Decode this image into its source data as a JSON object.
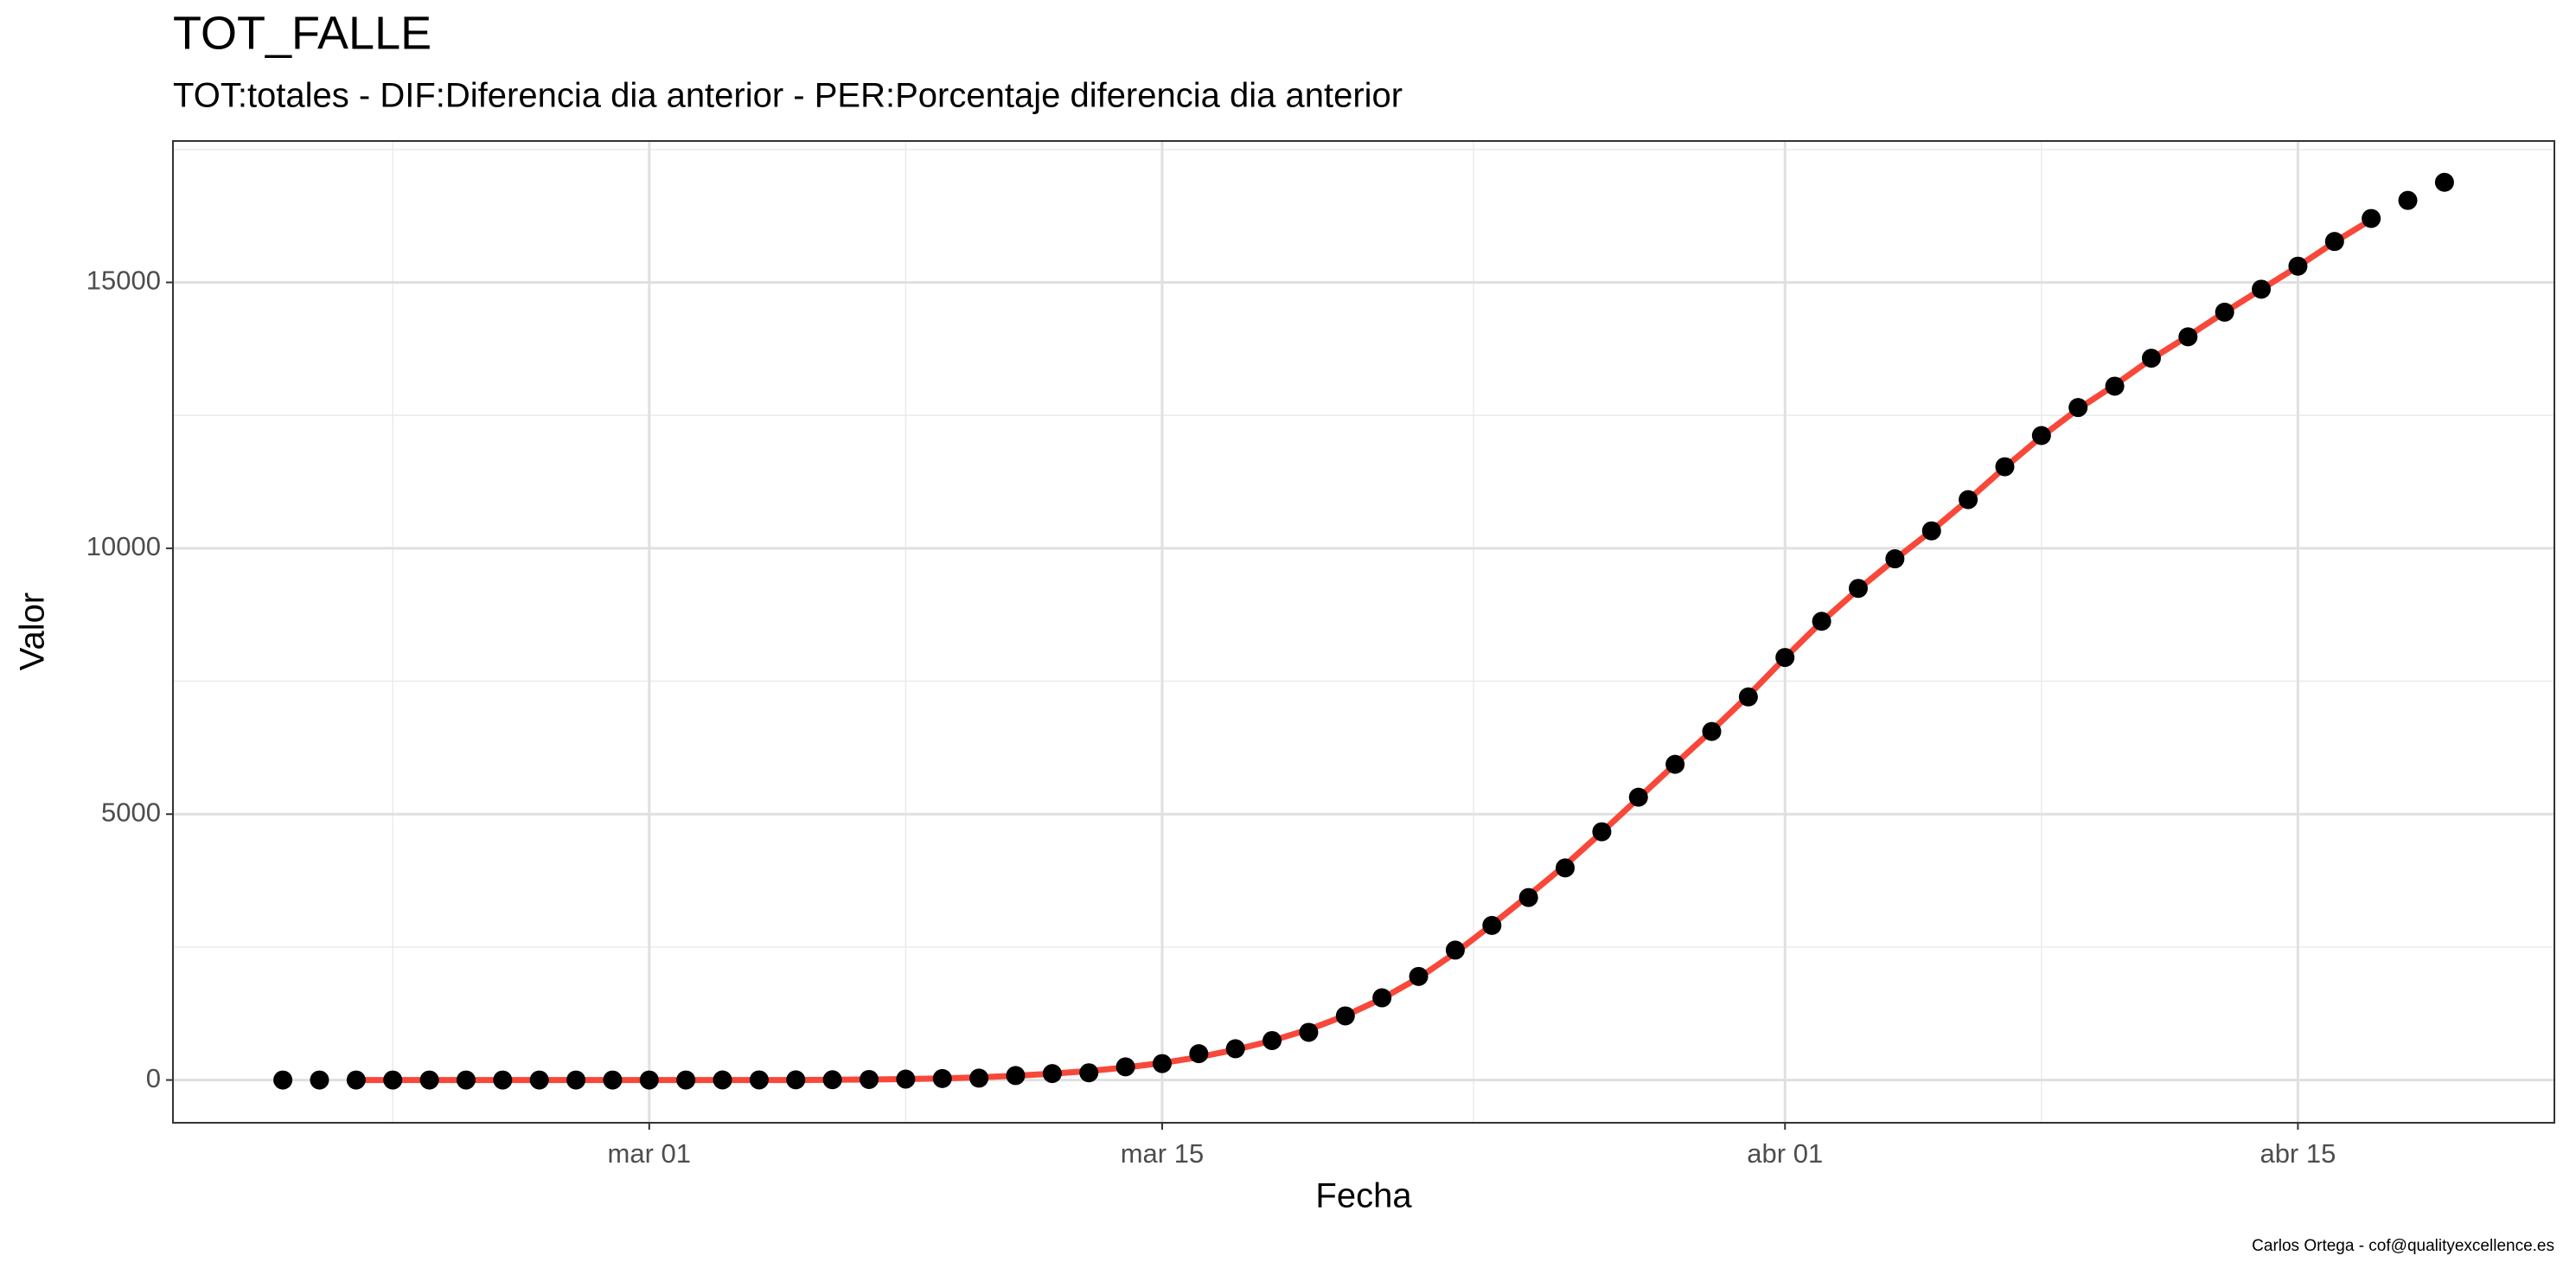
{
  "chart_data": {
    "type": "scatter",
    "title": "TOT_FALLE",
    "subtitle": "TOT:totales - DIF:Diferencia dia anterior - PER:Porcentaje diferencia dia anterior",
    "x_label": "Fecha",
    "y_label": "Valor",
    "caption": "Carlos Ortega - cof@qualityexcellence.es",
    "x": [
      "02-20",
      "02-21",
      "02-22",
      "02-23",
      "02-24",
      "02-25",
      "02-26",
      "02-27",
      "02-28",
      "02-29",
      "03-01",
      "03-02",
      "03-03",
      "03-04",
      "03-05",
      "03-06",
      "03-07",
      "03-08",
      "03-09",
      "03-10",
      "03-11",
      "03-12",
      "03-13",
      "03-14",
      "03-15",
      "03-16",
      "03-17",
      "03-18",
      "03-19",
      "03-20",
      "03-21",
      "03-22",
      "03-23",
      "03-24",
      "03-25",
      "03-26",
      "03-27",
      "03-28",
      "03-29",
      "03-30",
      "03-31",
      "04-01",
      "04-02",
      "04-03",
      "04-04",
      "04-05",
      "04-06",
      "04-07",
      "04-08",
      "04-09",
      "04-10",
      "04-11",
      "04-12",
      "04-13",
      "04-14",
      "04-15",
      "04-16",
      "04-17",
      "04-18",
      "04-19"
    ],
    "series": [
      {
        "mark": "point",
        "color": "#000000",
        "values": [
          0,
          0,
          0,
          0,
          0,
          0,
          0,
          0,
          0,
          0,
          0,
          0,
          1,
          2,
          3,
          5,
          10,
          17,
          28,
          35,
          84,
          121,
          136,
          247,
          309,
          495,
          588,
          742,
          897,
          1206,
          1546,
          1948,
          2443,
          2907,
          3432,
          3989,
          4669,
          5319,
          5937,
          6555,
          7205,
          7947,
          8627,
          9246,
          9802,
          10328,
          10915,
          11534,
          12121,
          12647,
          13049,
          13575,
          13977,
          14440,
          14873,
          15306,
          15770,
          16203,
          16543,
          16883
        ]
      },
      {
        "mark": "line",
        "color": "#f8483a",
        "values": [
          null,
          null,
          0,
          0,
          0,
          0,
          0,
          0,
          0,
          0,
          0,
          0,
          0,
          0,
          0,
          5,
          10,
          18,
          30,
          50,
          80,
          120,
          170,
          235,
          320,
          430,
          570,
          740,
          950,
          1210,
          1530,
          1920,
          2390,
          2920,
          3470,
          4040,
          4660,
          5300,
          5940,
          6570,
          7230,
          7940,
          8620,
          9230,
          9790,
          10330,
          10910,
          11520,
          12100,
          12620,
          13070,
          13560,
          13990,
          14440,
          14870,
          15300,
          15760,
          16180,
          null,
          null
        ]
      }
    ],
    "xlim": [
      "02-17",
      "04-22"
    ],
    "xticks": [
      {
        "value": "03-01",
        "label": "mar 01"
      },
      {
        "value": "03-15",
        "label": "mar 15"
      },
      {
        "value": "04-01",
        "label": "abr 01"
      },
      {
        "value": "04-15",
        "label": "abr 15"
      }
    ],
    "ylim": [
      -804,
      17660
    ],
    "yticks": [
      0,
      5000,
      10000,
      15000
    ],
    "grid": true
  }
}
